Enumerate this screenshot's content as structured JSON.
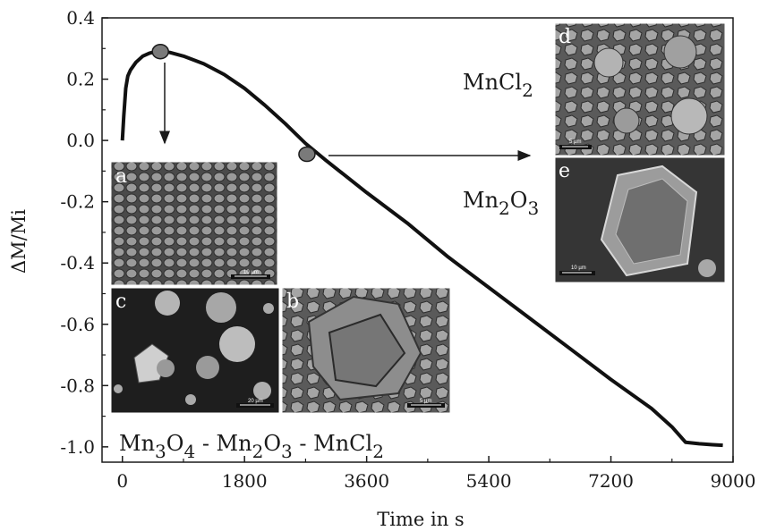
{
  "chart_data": {
    "type": "line",
    "xlabel": "Time in s",
    "ylabel": "ΔM/Mi",
    "xlim": [
      -300,
      9000
    ],
    "ylim": [
      -1.05,
      0.4
    ],
    "x_ticks": [
      0,
      1800,
      3600,
      5400,
      7200,
      9000
    ],
    "x_tick_labels": [
      "0",
      "1800",
      "3600",
      "5400",
      "7200",
      "9000"
    ],
    "y_ticks": [
      0.4,
      0.2,
      0.0,
      -0.2,
      -0.4,
      -0.6,
      -0.8,
      -1.0
    ],
    "y_tick_labels": [
      "0.4",
      "0.2",
      "0.0",
      "-0.2",
      "-0.4",
      "-0.6",
      "-0.8",
      "-1.0"
    ],
    "grid": false,
    "series": [
      {
        "x": [
          0,
          20,
          50,
          80,
          120,
          200,
          300,
          400,
          500,
          600,
          700,
          900,
          1200,
          1500,
          1800,
          2100,
          2400,
          2700,
          3000,
          3600,
          4200,
          4800,
          5400,
          6000,
          6600,
          7200,
          7800,
          8100,
          8200,
          8300,
          8500,
          8700,
          8850
        ],
        "y": [
          0.0,
          0.08,
          0.17,
          0.21,
          0.23,
          0.255,
          0.275,
          0.285,
          0.29,
          0.29,
          0.287,
          0.275,
          0.25,
          0.215,
          0.17,
          0.115,
          0.055,
          -0.01,
          -0.065,
          -0.17,
          -0.27,
          -0.38,
          -0.48,
          -0.58,
          -0.68,
          -0.78,
          -0.875,
          -0.935,
          -0.96,
          -0.985,
          -0.99,
          -0.993,
          -0.995
        ]
      }
    ],
    "markers": [
      {
        "x": 560,
        "y": 0.29
      },
      {
        "x": 2720,
        "y": -0.045
      }
    ],
    "annotations": {
      "bottom_formula": {
        "parts": [
          "Mn",
          "3",
          "O",
          "4",
          " - Mn",
          "2",
          "O",
          "3",
          " - MnCl",
          "2"
        ]
      },
      "label_mncl2": {
        "base": "MnCl",
        "sub": "2"
      },
      "label_mn2o3": {
        "parts": [
          "Mn",
          "2",
          "O",
          "3"
        ]
      }
    },
    "insets": [
      {
        "letter": "a",
        "scale": "10 µm"
      },
      {
        "letter": "b",
        "scale": "5 µm"
      },
      {
        "letter": "c",
        "scale": "20 µm"
      },
      {
        "letter": "d",
        "scale": "5 µm"
      },
      {
        "letter": "e",
        "scale": "10 µm"
      }
    ]
  }
}
